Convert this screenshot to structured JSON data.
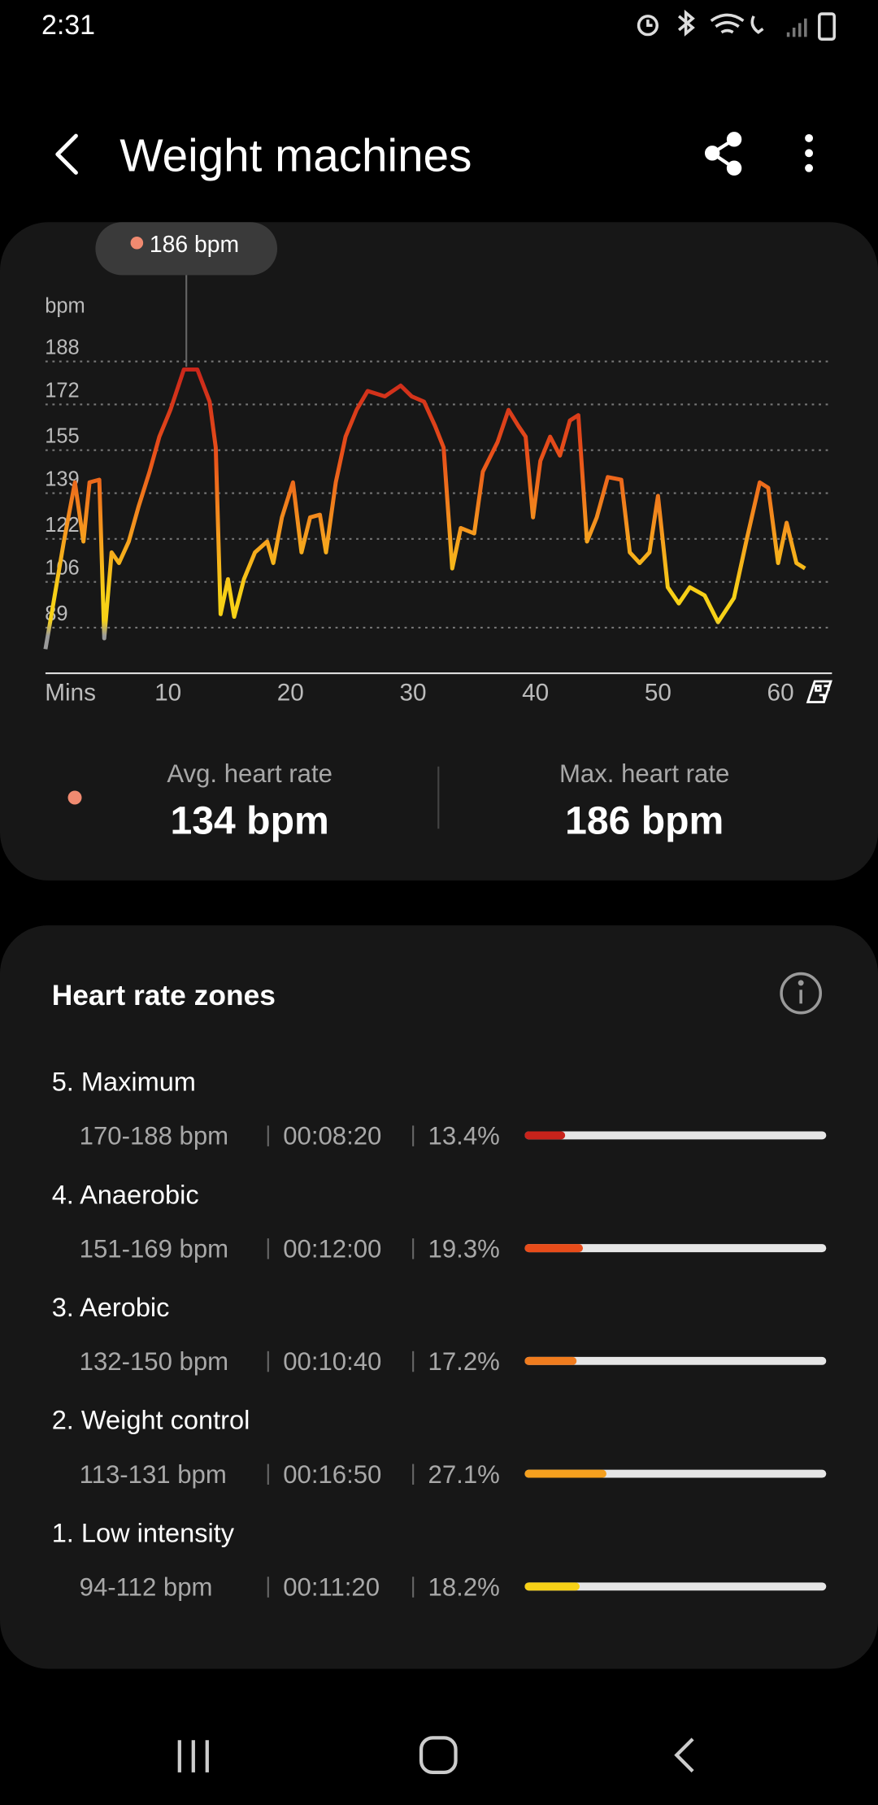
{
  "status_bar": {
    "time": "2:31"
  },
  "header": {
    "title": "Weight machines"
  },
  "chart_data": {
    "type": "line",
    "y_label": "bpm",
    "x_label": "Mins",
    "xlim": [
      0,
      64.2
    ],
    "ylim": [
      72,
      188
    ],
    "xticks": [
      10,
      20,
      30,
      40,
      50,
      60
    ],
    "yticks": [
      89,
      106,
      122,
      139,
      155,
      172,
      188
    ],
    "grid": true,
    "tooltip": {
      "x": 11.5,
      "value": 186,
      "label": "186 bpm",
      "color": "#f08a70"
    },
    "x": [
      0,
      0.5,
      1.5,
      2.4,
      3.1,
      3.6,
      4.4,
      4.8,
      5.4,
      6.0,
      6.8,
      7.6,
      8.5,
      9.3,
      10.2,
      11.3,
      12.4,
      13.4,
      13.9,
      14.3,
      14.9,
      15.4,
      16.2,
      17.1,
      18.1,
      18.6,
      19.3,
      20.2,
      20.9,
      21.6,
      22.4,
      22.9,
      23.7,
      24.5,
      25.4,
      26.3,
      27.7,
      29.0,
      29.9,
      30.9,
      31.8,
      32.5,
      33.2,
      33.9,
      35.0,
      35.7,
      36.9,
      37.8,
      38.6,
      39.2,
      39.8,
      40.4,
      41.2,
      42.0,
      42.8,
      43.5,
      44.2,
      45.0,
      45.9,
      47.0,
      47.7,
      48.5,
      49.3,
      50.0,
      50.8,
      51.7,
      52.6,
      53.8,
      54.9,
      56.2,
      57.2,
      58.3,
      59.0,
      59.8,
      60.5,
      61.3,
      62.0
    ],
    "values": [
      81,
      94,
      121,
      143,
      121,
      143,
      144,
      85,
      117,
      113,
      121,
      134,
      147,
      160,
      170,
      185,
      185,
      173,
      156,
      94,
      107,
      93,
      107,
      117,
      121,
      113,
      130,
      143,
      117,
      130,
      131,
      117,
      143,
      160,
      170,
      177,
      175,
      179,
      175,
      173,
      164,
      156,
      111,
      126,
      124,
      147,
      158,
      170,
      164,
      160,
      130,
      151,
      160,
      153,
      166,
      168,
      121,
      130,
      145,
      144,
      117,
      113,
      117,
      138,
      104,
      98,
      104,
      101,
      91,
      100,
      121,
      143,
      141,
      113,
      128,
      113,
      111
    ]
  },
  "summary": {
    "avg_label": "Avg. heart rate",
    "avg_value": "134 bpm",
    "max_label": "Max. heart rate",
    "max_value": "186 bpm",
    "dot_color": "#f08a70"
  },
  "zones": {
    "title": "Heart rate zones",
    "names": [
      "5. Maximum",
      "4. Anaerobic",
      "3. Aerobic",
      "2. Weight control",
      "1. Low intensity"
    ],
    "ranges": [
      "170-188 bpm",
      "151-169 bpm",
      "132-150 bpm",
      "113-131 bpm",
      "94-112 bpm"
    ],
    "times": [
      "00:08:20",
      "00:12:00",
      "00:10:40",
      "00:16:50",
      "00:11:20"
    ],
    "values": [
      13.4,
      19.3,
      17.2,
      27.1,
      18.2
    ],
    "value_labels": [
      "13.4%",
      "19.3%",
      "17.2%",
      "27.1%",
      "18.2%"
    ],
    "colors": [
      "#c8231b",
      "#e84c1a",
      "#f07c1e",
      "#f5a01e",
      "#f7d117"
    ]
  }
}
